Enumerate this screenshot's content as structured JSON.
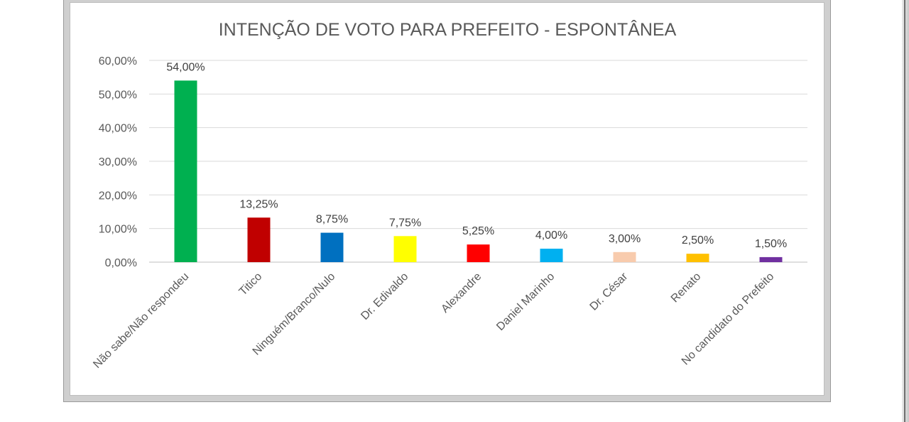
{
  "chart_data": {
    "type": "bar",
    "title": "INTENÇÃO DE VOTO PARA PREFEITO - ESPONTÂNEA",
    "categories": [
      "Não sabe/Não respondeu",
      "Titico",
      "Ninguém/Branco/Nulo",
      "Dr. Edivaldo",
      "Alexandre",
      "Daniel Marinho",
      "Dr. César",
      "Renato",
      "No candidato do Prefeito"
    ],
    "values": [
      54.0,
      13.25,
      8.75,
      7.75,
      5.25,
      4.0,
      3.0,
      2.5,
      1.5
    ],
    "data_labels": [
      "54,00%",
      "13,25%",
      "8,75%",
      "7,75%",
      "5,25%",
      "4,00%",
      "3,00%",
      "2,50%",
      "1,50%"
    ],
    "colors": [
      "#00b050",
      "#c00000",
      "#0070c0",
      "#ffff00",
      "#ff0000",
      "#00b0f0",
      "#f8cbad",
      "#ffc000",
      "#7030a0"
    ],
    "ylim": [
      0,
      60
    ],
    "yticks": [
      0,
      10,
      20,
      30,
      40,
      50,
      60
    ],
    "ytick_labels": [
      "0,00%",
      "10,00%",
      "20,00%",
      "30,00%",
      "40,00%",
      "50,00%",
      "60,00%"
    ],
    "grid": true,
    "xlabel": "",
    "ylabel": ""
  }
}
